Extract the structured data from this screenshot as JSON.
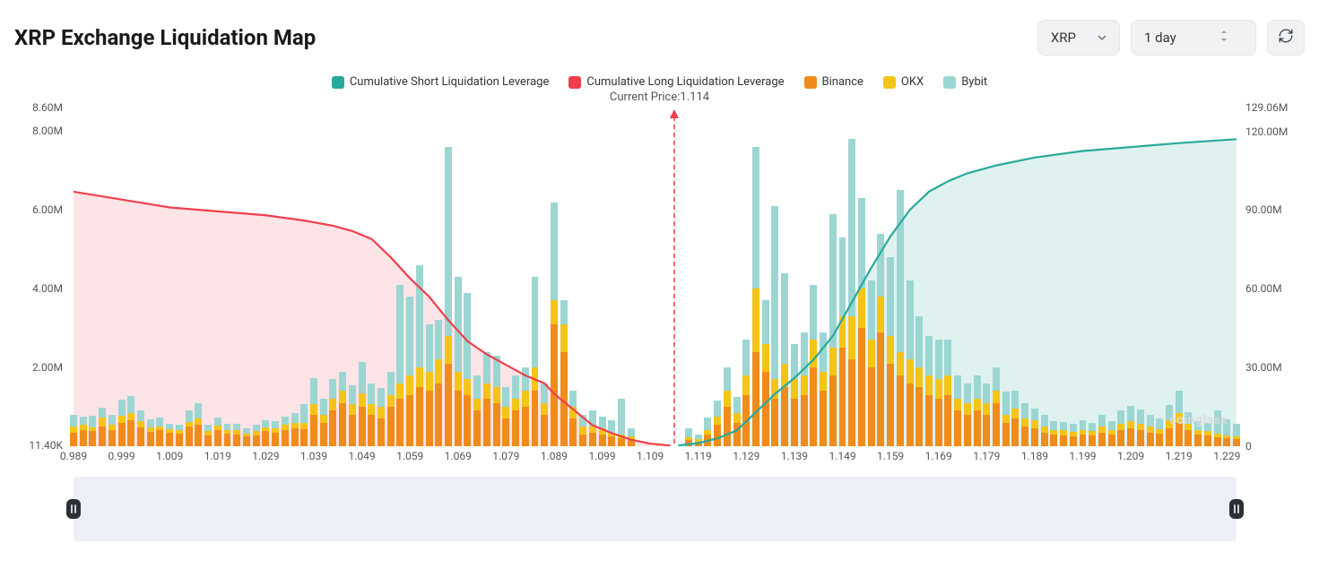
{
  "title": "XRP Exchange Liquidation Map",
  "selectors": {
    "asset": "XRP",
    "range": "1 day"
  },
  "legend": [
    {
      "label": "Cumulative Short Liquidation Leverage",
      "color": "#2aa99b"
    },
    {
      "label": "Cumulative Long Liquidation Leverage",
      "color": "#ef3f4d"
    },
    {
      "label": "Binance",
      "color": "#f08c1c"
    },
    {
      "label": "OKX",
      "color": "#f4c417"
    },
    {
      "label": "Bybit",
      "color": "#9bd6d2"
    }
  ],
  "current_price_label": "Current Price:1.114",
  "current_price_x": 1.114,
  "colors": {
    "bg": "#ffffff",
    "text": "#1a1a1a",
    "grid": "#e7e7e9",
    "vline": "#ef3f4d",
    "long_line": "#ef3f4d",
    "long_fill": "rgba(239,63,77,0.14)",
    "short_line": "#2aa99b",
    "short_fill": "rgba(42,169,155,0.15)",
    "scrub_bg": "#eceff5",
    "handle": "#2b2f36",
    "watermark": "#d7dadf"
  },
  "chart": {
    "type": "stacked-bar + dual-cumulative-area",
    "x": {
      "min": 0.989,
      "max": 1.231,
      "tick_start": 0.989,
      "tick_step": 0.01,
      "n_ticks": 25,
      "format": "0.000_trim"
    },
    "y_left": {
      "label_side": "left",
      "ticks": [
        {
          "v": 0.0114,
          "t": "11.40K"
        },
        {
          "v": 2.0,
          "t": "2.00M"
        },
        {
          "v": 4.0,
          "t": "4.00M"
        },
        {
          "v": 6.0,
          "t": "6.00M"
        },
        {
          "v": 8.0,
          "t": "8.00M"
        },
        {
          "v": 8.6,
          "t": "8.60M"
        }
      ],
      "min": 0,
      "max": 8.6
    },
    "y_right": {
      "label_side": "right",
      "ticks": [
        {
          "v": 0,
          "t": "0"
        },
        {
          "v": 30,
          "t": "30.00M"
        },
        {
          "v": 60,
          "t": "60.00M"
        },
        {
          "v": 90,
          "t": "90.00M"
        },
        {
          "v": 120,
          "t": "120.00M"
        },
        {
          "v": 129.06,
          "t": "129.06M"
        }
      ],
      "min": 0,
      "max": 129.06
    },
    "bar_series": [
      "binance",
      "okx",
      "bybit"
    ],
    "bar_colors": {
      "binance": "#f08c1c",
      "okx": "#f4c417",
      "bybit": "#9bd6d2"
    },
    "bar_gap_ratio": 0.28,
    "bars": [
      {
        "x": 0.989,
        "binance": 0.35,
        "okx": 0.14,
        "bybit": 0.3
      },
      {
        "x": 0.991,
        "binance": 0.4,
        "okx": 0.14,
        "bybit": 0.22
      },
      {
        "x": 0.993,
        "binance": 0.38,
        "okx": 0.1,
        "bybit": 0.3
      },
      {
        "x": 0.995,
        "binance": 0.5,
        "okx": 0.22,
        "bybit": 0.26
      },
      {
        "x": 0.997,
        "binance": 0.42,
        "okx": 0.12,
        "bybit": 0.26
      },
      {
        "x": 0.999,
        "binance": 0.6,
        "okx": 0.18,
        "bybit": 0.4
      },
      {
        "x": 1.001,
        "binance": 0.65,
        "okx": 0.2,
        "bybit": 0.42
      },
      {
        "x": 1.003,
        "binance": 0.48,
        "okx": 0.15,
        "bybit": 0.28
      },
      {
        "x": 1.005,
        "binance": 0.36,
        "okx": 0.12,
        "bybit": 0.2
      },
      {
        "x": 1.007,
        "binance": 0.4,
        "okx": 0.1,
        "bybit": 0.22
      },
      {
        "x": 1.009,
        "binance": 0.34,
        "okx": 0.1,
        "bybit": 0.14
      },
      {
        "x": 1.011,
        "binance": 0.32,
        "okx": 0.08,
        "bybit": 0.14
      },
      {
        "x": 1.013,
        "binance": 0.5,
        "okx": 0.12,
        "bybit": 0.3
      },
      {
        "x": 1.015,
        "binance": 0.55,
        "okx": 0.16,
        "bybit": 0.38
      },
      {
        "x": 1.017,
        "binance": 0.28,
        "okx": 0.1,
        "bybit": 0.16
      },
      {
        "x": 1.019,
        "binance": 0.4,
        "okx": 0.12,
        "bybit": 0.2
      },
      {
        "x": 1.021,
        "binance": 0.32,
        "okx": 0.1,
        "bybit": 0.16
      },
      {
        "x": 1.023,
        "binance": 0.3,
        "okx": 0.1,
        "bybit": 0.18
      },
      {
        "x": 1.025,
        "binance": 0.24,
        "okx": 0.08,
        "bybit": 0.14
      },
      {
        "x": 1.027,
        "binance": 0.28,
        "okx": 0.1,
        "bybit": 0.16
      },
      {
        "x": 1.029,
        "binance": 0.38,
        "okx": 0.1,
        "bybit": 0.18
      },
      {
        "x": 1.031,
        "binance": 0.34,
        "okx": 0.12,
        "bybit": 0.18
      },
      {
        "x": 1.033,
        "binance": 0.4,
        "okx": 0.14,
        "bybit": 0.22
      },
      {
        "x": 1.035,
        "binance": 0.46,
        "okx": 0.14,
        "bybit": 0.24
      },
      {
        "x": 1.037,
        "binance": 0.44,
        "okx": 0.16,
        "bybit": 0.48
      },
      {
        "x": 1.039,
        "binance": 0.8,
        "okx": 0.28,
        "bybit": 0.66
      },
      {
        "x": 1.041,
        "binance": 0.6,
        "okx": 0.2,
        "bybit": 0.4
      },
      {
        "x": 1.043,
        "binance": 0.9,
        "okx": 0.3,
        "bybit": 0.5
      },
      {
        "x": 1.045,
        "binance": 1.1,
        "okx": 0.3,
        "bybit": 0.5
      },
      {
        "x": 1.047,
        "binance": 0.8,
        "okx": 0.28,
        "bybit": 0.46
      },
      {
        "x": 1.049,
        "binance": 1.0,
        "okx": 0.34,
        "bybit": 0.8
      },
      {
        "x": 1.051,
        "binance": 0.8,
        "okx": 0.26,
        "bybit": 0.54
      },
      {
        "x": 1.053,
        "binance": 0.7,
        "okx": 0.3,
        "bybit": 0.48
      },
      {
        "x": 1.055,
        "binance": 1.0,
        "okx": 0.3,
        "bybit": 0.6
      },
      {
        "x": 1.057,
        "binance": 1.2,
        "okx": 0.4,
        "bybit": 2.5
      },
      {
        "x": 1.059,
        "binance": 1.3,
        "okx": 0.5,
        "bybit": 2.0
      },
      {
        "x": 1.061,
        "binance": 1.5,
        "okx": 0.5,
        "bybit": 2.6
      },
      {
        "x": 1.063,
        "binance": 1.4,
        "okx": 0.5,
        "bybit": 1.2
      },
      {
        "x": 1.065,
        "binance": 1.6,
        "okx": 0.6,
        "bybit": 1.0
      },
      {
        "x": 1.067,
        "binance": 2.1,
        "okx": 0.7,
        "bybit": 4.8
      },
      {
        "x": 1.069,
        "binance": 1.4,
        "okx": 0.5,
        "bybit": 2.4
      },
      {
        "x": 1.071,
        "binance": 1.3,
        "okx": 0.4,
        "bybit": 2.2
      },
      {
        "x": 1.073,
        "binance": 0.9,
        "okx": 0.3,
        "bybit": 0.6
      },
      {
        "x": 1.075,
        "binance": 1.2,
        "okx": 0.4,
        "bybit": 0.8
      },
      {
        "x": 1.077,
        "binance": 1.1,
        "okx": 0.4,
        "bybit": 0.8
      },
      {
        "x": 1.079,
        "binance": 0.7,
        "okx": 0.3,
        "bybit": 0.5
      },
      {
        "x": 1.081,
        "binance": 0.9,
        "okx": 0.3,
        "bybit": 0.6
      },
      {
        "x": 1.083,
        "binance": 1.0,
        "okx": 0.4,
        "bybit": 0.6
      },
      {
        "x": 1.085,
        "binance": 1.4,
        "okx": 0.6,
        "bybit": 2.3
      },
      {
        "x": 1.087,
        "binance": 0.8,
        "okx": 0.3,
        "bybit": 0.5
      },
      {
        "x": 1.089,
        "binance": 3.1,
        "okx": 0.6,
        "bybit": 2.5
      },
      {
        "x": 1.091,
        "binance": 2.4,
        "okx": 0.7,
        "bybit": 0.6
      },
      {
        "x": 1.093,
        "binance": 0.7,
        "okx": 0.3,
        "bybit": 0.4
      },
      {
        "x": 1.095,
        "binance": 0.3,
        "okx": 0.2,
        "bybit": 0.3
      },
      {
        "x": 1.097,
        "binance": 0.35,
        "okx": 0.15,
        "bybit": 0.4
      },
      {
        "x": 1.099,
        "binance": 0.3,
        "okx": 0.15,
        "bybit": 0.3
      },
      {
        "x": 1.101,
        "binance": 0.25,
        "okx": 0.1,
        "bybit": 0.3
      },
      {
        "x": 1.103,
        "binance": 0.2,
        "okx": 0.1,
        "bybit": 0.9
      },
      {
        "x": 1.105,
        "binance": 0.15,
        "okx": 0.1,
        "bybit": 0.2
      },
      {
        "x": 1.117,
        "binance": 0.15,
        "okx": 0.08,
        "bybit": 0.22
      },
      {
        "x": 1.119,
        "binance": 0.12,
        "okx": 0.06,
        "bybit": 0.12
      },
      {
        "x": 1.121,
        "binance": 0.3,
        "okx": 0.12,
        "bybit": 0.3
      },
      {
        "x": 1.123,
        "binance": 0.55,
        "okx": 0.2,
        "bybit": 0.4
      },
      {
        "x": 1.125,
        "binance": 1.0,
        "okx": 0.4,
        "bybit": 0.6
      },
      {
        "x": 1.127,
        "binance": 0.6,
        "okx": 0.25,
        "bybit": 0.4
      },
      {
        "x": 1.129,
        "binance": 1.3,
        "okx": 0.5,
        "bybit": 0.9
      },
      {
        "x": 1.131,
        "binance": 2.4,
        "okx": 1.6,
        "bybit": 3.6
      },
      {
        "x": 1.133,
        "binance": 1.9,
        "okx": 0.7,
        "bybit": 1.1
      },
      {
        "x": 1.135,
        "binance": 1.2,
        "okx": 0.5,
        "bybit": 4.4
      },
      {
        "x": 1.137,
        "binance": 1.5,
        "okx": 0.6,
        "bybit": 2.3
      },
      {
        "x": 1.139,
        "binance": 1.2,
        "okx": 0.5,
        "bybit": 0.9
      },
      {
        "x": 1.141,
        "binance": 1.3,
        "okx": 0.5,
        "bybit": 1.1
      },
      {
        "x": 1.143,
        "binance": 2.0,
        "okx": 0.7,
        "bybit": 1.4
      },
      {
        "x": 1.145,
        "binance": 1.4,
        "okx": 0.5,
        "bybit": 1.0
      },
      {
        "x": 1.147,
        "binance": 1.8,
        "okx": 0.7,
        "bybit": 3.4
      },
      {
        "x": 1.149,
        "binance": 2.5,
        "okx": 0.8,
        "bybit": 2.0
      },
      {
        "x": 1.151,
        "binance": 2.2,
        "okx": 1.1,
        "bybit": 4.5
      },
      {
        "x": 1.153,
        "binance": 3.0,
        "okx": 1.0,
        "bybit": 2.3
      },
      {
        "x": 1.155,
        "binance": 2.0,
        "okx": 0.7,
        "bybit": 1.5
      },
      {
        "x": 1.157,
        "binance": 2.9,
        "okx": 0.9,
        "bybit": 1.6
      },
      {
        "x": 1.159,
        "binance": 2.1,
        "okx": 0.7,
        "bybit": 2.0
      },
      {
        "x": 1.161,
        "binance": 1.8,
        "okx": 0.6,
        "bybit": 4.1
      },
      {
        "x": 1.163,
        "binance": 1.6,
        "okx": 0.6,
        "bybit": 2.0
      },
      {
        "x": 1.165,
        "binance": 1.5,
        "okx": 0.5,
        "bybit": 1.3
      },
      {
        "x": 1.167,
        "binance": 1.3,
        "okx": 0.5,
        "bybit": 1.0
      },
      {
        "x": 1.169,
        "binance": 1.2,
        "okx": 0.5,
        "bybit": 1.0
      },
      {
        "x": 1.171,
        "binance": 1.3,
        "okx": 0.5,
        "bybit": 0.9
      },
      {
        "x": 1.173,
        "binance": 0.9,
        "okx": 0.3,
        "bybit": 0.6
      },
      {
        "x": 1.175,
        "binance": 0.8,
        "okx": 0.3,
        "bybit": 0.5
      },
      {
        "x": 1.177,
        "binance": 0.9,
        "okx": 0.3,
        "bybit": 0.6
      },
      {
        "x": 1.179,
        "binance": 0.8,
        "okx": 0.3,
        "bybit": 0.5
      },
      {
        "x": 1.181,
        "binance": 1.1,
        "okx": 0.3,
        "bybit": 0.6
      },
      {
        "x": 1.183,
        "binance": 0.6,
        "okx": 0.2,
        "bybit": 0.6
      },
      {
        "x": 1.185,
        "binance": 0.7,
        "okx": 0.25,
        "bybit": 0.45
      },
      {
        "x": 1.187,
        "binance": 0.5,
        "okx": 0.2,
        "bybit": 0.4
      },
      {
        "x": 1.189,
        "binance": 0.45,
        "okx": 0.2,
        "bybit": 0.3
      },
      {
        "x": 1.191,
        "binance": 0.35,
        "okx": 0.15,
        "bybit": 0.3
      },
      {
        "x": 1.193,
        "binance": 0.3,
        "okx": 0.12,
        "bybit": 0.22
      },
      {
        "x": 1.195,
        "binance": 0.28,
        "okx": 0.12,
        "bybit": 0.22
      },
      {
        "x": 1.197,
        "binance": 0.26,
        "okx": 0.1,
        "bybit": 0.2
      },
      {
        "x": 1.199,
        "binance": 0.3,
        "okx": 0.12,
        "bybit": 0.24
      },
      {
        "x": 1.201,
        "binance": 0.28,
        "okx": 0.1,
        "bybit": 0.22
      },
      {
        "x": 1.203,
        "binance": 0.35,
        "okx": 0.15,
        "bybit": 0.3
      },
      {
        "x": 1.205,
        "binance": 0.3,
        "okx": 0.12,
        "bybit": 0.22
      },
      {
        "x": 1.207,
        "binance": 0.4,
        "okx": 0.16,
        "bybit": 0.36
      },
      {
        "x": 1.209,
        "binance": 0.45,
        "okx": 0.18,
        "bybit": 0.4
      },
      {
        "x": 1.211,
        "binance": 0.42,
        "okx": 0.16,
        "bybit": 0.36
      },
      {
        "x": 1.213,
        "binance": 0.35,
        "okx": 0.14,
        "bybit": 0.3
      },
      {
        "x": 1.215,
        "binance": 0.32,
        "okx": 0.12,
        "bybit": 0.26
      },
      {
        "x": 1.217,
        "binance": 0.45,
        "okx": 0.2,
        "bybit": 0.4
      },
      {
        "x": 1.219,
        "binance": 0.6,
        "okx": 0.25,
        "bybit": 0.55
      },
      {
        "x": 1.221,
        "binance": 0.4,
        "okx": 0.16,
        "bybit": 0.3
      },
      {
        "x": 1.223,
        "binance": 0.3,
        "okx": 0.12,
        "bybit": 0.22
      },
      {
        "x": 1.225,
        "binance": 0.28,
        "okx": 0.1,
        "bybit": 0.22
      },
      {
        "x": 1.227,
        "binance": 0.22,
        "okx": 0.1,
        "bybit": 0.6
      },
      {
        "x": 1.229,
        "binance": 0.2,
        "okx": 0.08,
        "bybit": 0.4
      },
      {
        "x": 1.231,
        "binance": 0.18,
        "okx": 0.08,
        "bybit": 0.3
      }
    ],
    "cumulative_long": [
      {
        "x": 0.989,
        "v": 97
      },
      {
        "x": 0.999,
        "v": 94
      },
      {
        "x": 1.009,
        "v": 91
      },
      {
        "x": 1.019,
        "v": 89.5
      },
      {
        "x": 1.029,
        "v": 88
      },
      {
        "x": 1.037,
        "v": 86
      },
      {
        "x": 1.043,
        "v": 84
      },
      {
        "x": 1.047,
        "v": 82
      },
      {
        "x": 1.051,
        "v": 79
      },
      {
        "x": 1.055,
        "v": 72
      },
      {
        "x": 1.059,
        "v": 64
      },
      {
        "x": 1.063,
        "v": 57
      },
      {
        "x": 1.067,
        "v": 48
      },
      {
        "x": 1.071,
        "v": 40
      },
      {
        "x": 1.075,
        "v": 35
      },
      {
        "x": 1.079,
        "v": 31
      },
      {
        "x": 1.083,
        "v": 27
      },
      {
        "x": 1.087,
        "v": 24
      },
      {
        "x": 1.089,
        "v": 20
      },
      {
        "x": 1.093,
        "v": 14
      },
      {
        "x": 1.097,
        "v": 8
      },
      {
        "x": 1.101,
        "v": 5
      },
      {
        "x": 1.105,
        "v": 2.5
      },
      {
        "x": 1.109,
        "v": 1
      },
      {
        "x": 1.113,
        "v": 0.3
      }
    ],
    "cumulative_short": [
      {
        "x": 1.115,
        "v": 0.3
      },
      {
        "x": 1.119,
        "v": 1.2
      },
      {
        "x": 1.123,
        "v": 3
      },
      {
        "x": 1.127,
        "v": 6
      },
      {
        "x": 1.131,
        "v": 13
      },
      {
        "x": 1.135,
        "v": 20
      },
      {
        "x": 1.139,
        "v": 26
      },
      {
        "x": 1.143,
        "v": 33
      },
      {
        "x": 1.147,
        "v": 42
      },
      {
        "x": 1.151,
        "v": 55
      },
      {
        "x": 1.155,
        "v": 68
      },
      {
        "x": 1.159,
        "v": 80
      },
      {
        "x": 1.163,
        "v": 90
      },
      {
        "x": 1.167,
        "v": 97
      },
      {
        "x": 1.171,
        "v": 101
      },
      {
        "x": 1.175,
        "v": 104
      },
      {
        "x": 1.181,
        "v": 107
      },
      {
        "x": 1.189,
        "v": 110
      },
      {
        "x": 1.199,
        "v": 112.5
      },
      {
        "x": 1.209,
        "v": 114
      },
      {
        "x": 1.219,
        "v": 115.5
      },
      {
        "x": 1.231,
        "v": 117
      }
    ],
    "line_width": 2.2
  },
  "watermark": "coinglass",
  "layout": {
    "title_fontsize": 24,
    "legend_fontsize": 13,
    "axis_fontsize": 12
  }
}
